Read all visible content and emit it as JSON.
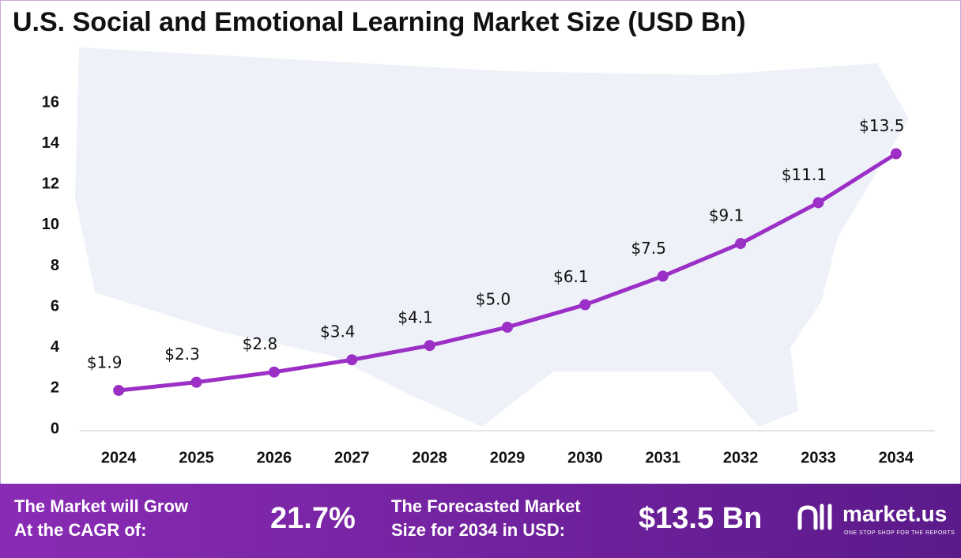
{
  "chart_data": {
    "type": "line",
    "title": "U.S. Social and Emotional Learning Market Size (USD Bn)",
    "categories": [
      "2024",
      "2025",
      "2026",
      "2027",
      "2028",
      "2029",
      "2030",
      "2031",
      "2032",
      "2033",
      "2034"
    ],
    "values": [
      1.9,
      2.3,
      2.8,
      3.4,
      4.1,
      5.0,
      6.1,
      7.5,
      9.1,
      11.1,
      13.5
    ],
    "value_labels": [
      "$1.9",
      "$2.3",
      "$2.8",
      "$3.4",
      "$4.1",
      "$5.0",
      "$6.1",
      "$7.5",
      "$9.1",
      "$11.1",
      "$13.5"
    ],
    "color": "#9b2fc6",
    "ylim": [
      0,
      16
    ],
    "yticks": [
      0,
      2,
      4,
      6,
      8,
      10,
      12,
      14,
      16
    ],
    "grid": false
  },
  "footer": {
    "cagr_label": [
      "The Market will Grow",
      "At the CAGR of:"
    ],
    "cagr_value": "21.7%",
    "forecast_label": [
      "The Forecasted Market",
      "Size for 2034 in USD:"
    ],
    "forecast_value": "$13.5 Bn",
    "brand": "market.us",
    "tagline": "ONE STOP SHOP FOR THE REPORTS"
  }
}
